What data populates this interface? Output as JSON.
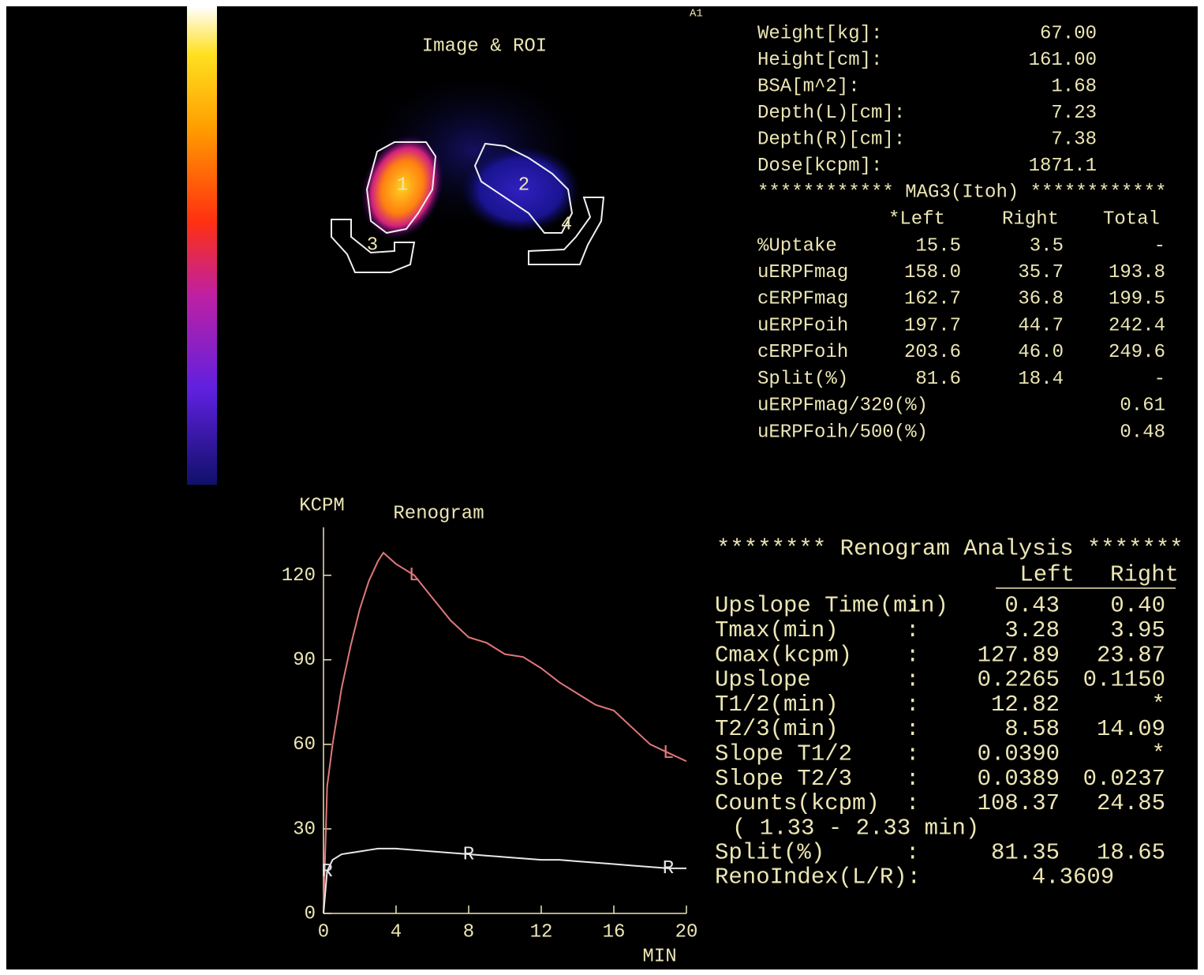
{
  "corner_label": "A1",
  "image": {
    "title": "Image & ROI",
    "roi_labels": [
      "1",
      "2",
      "3",
      "4"
    ]
  },
  "patient": {
    "rows": [
      [
        "Weight[kg]:",
        "67.00"
      ],
      [
        "Height[cm]:",
        "161.00"
      ],
      [
        "BSA[m^2]:",
        "1.68"
      ],
      [
        "Depth(L)[cm]:",
        "7.23"
      ],
      [
        "Depth(R)[cm]:",
        "7.38"
      ],
      [
        "Dose[kcpm]:",
        "1871.1"
      ]
    ]
  },
  "mag3": {
    "title": "************ MAG3(Itoh) ************",
    "header": [
      "*Left",
      "Right",
      "Total"
    ],
    "rows": [
      [
        "%Uptake",
        "15.5",
        "3.5",
        "-"
      ],
      [
        "uERPFmag",
        "158.0",
        "35.7",
        "193.8"
      ],
      [
        "cERPFmag",
        "162.7",
        "36.8",
        "199.5"
      ],
      [
        "uERPFoih",
        "197.7",
        "44.7",
        "242.4"
      ],
      [
        "cERPFoih",
        "203.6",
        "46.0",
        "249.6"
      ],
      [
        "Split(%)",
        "81.6",
        "18.4",
        "-"
      ]
    ],
    "ratios": [
      [
        "uERPFmag/320(%)",
        "0.61"
      ],
      [
        "uERPFoih/500(%)",
        "0.48"
      ]
    ]
  },
  "analysis": {
    "title": "******** Renogram Analysis *******",
    "header": [
      "Left",
      "Right"
    ],
    "rows": [
      [
        "Upslope Time(min)",
        ":",
        "0.43",
        "0.40"
      ],
      [
        "Tmax(min)",
        ":",
        "3.28",
        "3.95"
      ],
      [
        "Cmax(kcpm)",
        ":",
        "127.89",
        "23.87"
      ],
      [
        "Upslope",
        ":",
        "0.2265",
        "0.1150"
      ],
      [
        "T1/2(min)",
        ":",
        "12.82",
        "*"
      ],
      [
        "T2/3(min)",
        ":",
        "8.58",
        "14.09"
      ],
      [
        "Slope T1/2",
        ":",
        "0.0390",
        "*"
      ],
      [
        "Slope T2/3",
        ":",
        "0.0389",
        "0.0237"
      ],
      [
        "Counts(kcpm)",
        ":",
        "108.37",
        "24.85"
      ]
    ],
    "interval": "( 1.33 -   2.33 min)",
    "split": [
      "Split(%)",
      ":",
      "81.35",
      "18.65"
    ],
    "reno_index": [
      "RenoIndex(L/R):",
      "4.3609"
    ]
  },
  "chart_data": {
    "type": "line",
    "title": "Renogram",
    "y_label": "KCPM",
    "x_label": "MIN",
    "xlim": [
      0,
      20
    ],
    "ylim": [
      0,
      137
    ],
    "xticks": [
      0,
      4,
      8,
      12,
      16,
      20
    ],
    "yticks": [
      0,
      30,
      60,
      90,
      120
    ],
    "x": [
      0,
      0.2,
      0.5,
      1,
      1.5,
      2,
      2.5,
      3,
      3.3,
      4,
      5,
      6,
      7,
      8,
      9,
      10,
      11,
      12,
      13,
      14,
      15,
      16,
      17,
      18,
      19,
      20
    ],
    "series": [
      {
        "name": "L",
        "color": "#e07878",
        "values": [
          0,
          45,
          60,
          80,
          95,
          108,
          118,
          125,
          128,
          124,
          120,
          112,
          104,
          98,
          96,
          92,
          91,
          87,
          82,
          78,
          74,
          72,
          66,
          60,
          57,
          54
        ]
      },
      {
        "name": "R",
        "color": "#e8e8e8",
        "values": [
          0,
          15,
          19,
          21,
          21.5,
          22,
          22.5,
          23,
          23,
          23,
          22.5,
          22,
          21.5,
          21,
          20.5,
          20,
          19.5,
          19,
          19,
          18.5,
          18,
          17.5,
          17,
          16.5,
          16,
          16
        ]
      }
    ]
  }
}
